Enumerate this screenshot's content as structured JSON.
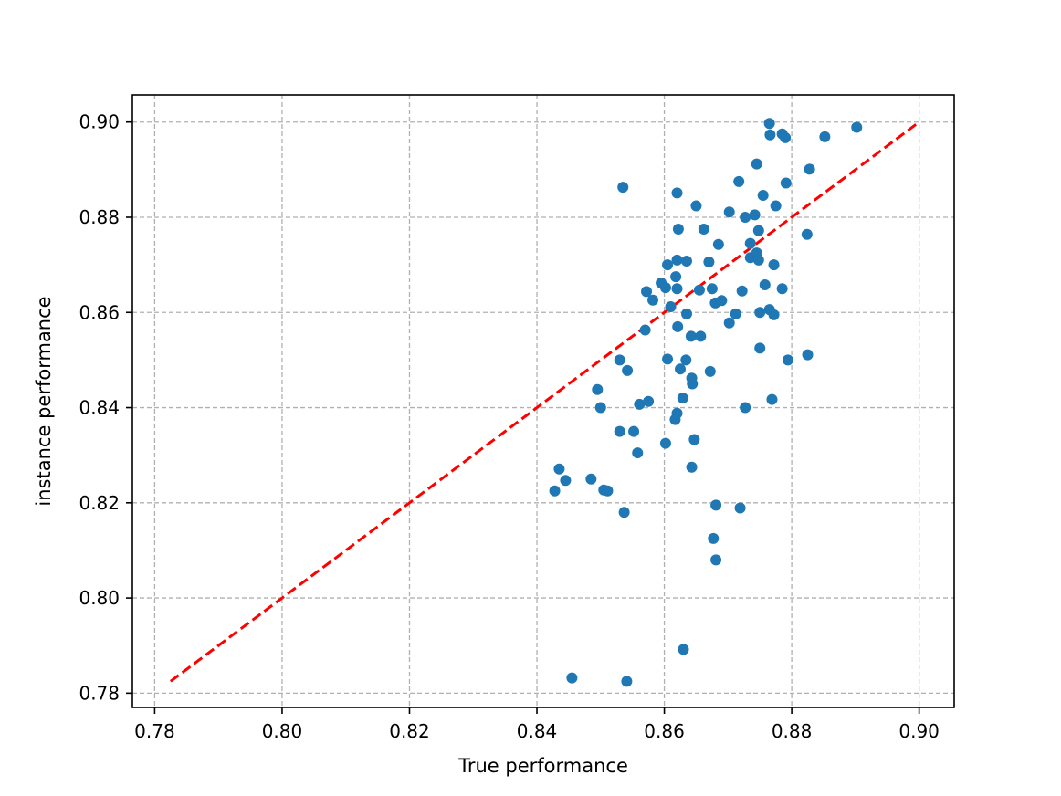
{
  "chart_data": {
    "type": "scatter",
    "xlabel": "True performance",
    "ylabel": "instance performance",
    "xlim": [
      0.7765,
      0.9055
    ],
    "ylim": [
      0.777,
      0.9057
    ],
    "xticks": [
      0.78,
      0.8,
      0.82,
      0.84,
      0.86,
      0.88,
      0.9
    ],
    "yticks": [
      0.78,
      0.8,
      0.82,
      0.84,
      0.86,
      0.88,
      0.9
    ],
    "xtick_labels": [
      "0.78",
      "0.80",
      "0.82",
      "0.84",
      "0.86",
      "0.88",
      "0.90"
    ],
    "ytick_labels": [
      "0.78",
      "0.80",
      "0.82",
      "0.84",
      "0.86",
      "0.88",
      "0.90"
    ],
    "grid": true,
    "point_color": "#1f77b4",
    "reference_line": {
      "x": [
        0.7825,
        0.8995
      ],
      "y": [
        0.7825,
        0.8995
      ],
      "color": "#ff0000",
      "style": "dashed"
    },
    "points": [
      [
        0.8765,
        0.8997
      ],
      [
        0.8766,
        0.8973
      ],
      [
        0.8785,
        0.8975
      ],
      [
        0.879,
        0.8967
      ],
      [
        0.8852,
        0.8969
      ],
      [
        0.8902,
        0.8989
      ],
      [
        0.8745,
        0.8912
      ],
      [
        0.8828,
        0.8901
      ],
      [
        0.8717,
        0.8875
      ],
      [
        0.8791,
        0.8872
      ],
      [
        0.8535,
        0.8863
      ],
      [
        0.862,
        0.8851
      ],
      [
        0.8755,
        0.8846
      ],
      [
        0.865,
        0.8824
      ],
      [
        0.8775,
        0.8824
      ],
      [
        0.8702,
        0.8811
      ],
      [
        0.8727,
        0.88
      ],
      [
        0.8742,
        0.8805
      ],
      [
        0.8622,
        0.8775
      ],
      [
        0.8662,
        0.8775
      ],
      [
        0.8748,
        0.8772
      ],
      [
        0.8824,
        0.8764
      ],
      [
        0.8685,
        0.8743
      ],
      [
        0.8735,
        0.8745
      ],
      [
        0.8745,
        0.8725
      ],
      [
        0.8735,
        0.8715
      ],
      [
        0.8748,
        0.871
      ],
      [
        0.8605,
        0.87
      ],
      [
        0.862,
        0.871
      ],
      [
        0.8635,
        0.8708
      ],
      [
        0.867,
        0.8706
      ],
      [
        0.8772,
        0.87
      ],
      [
        0.8618,
        0.8675
      ],
      [
        0.8595,
        0.8662
      ],
      [
        0.8572,
        0.8644
      ],
      [
        0.8602,
        0.8652
      ],
      [
        0.862,
        0.865
      ],
      [
        0.8655,
        0.8647
      ],
      [
        0.8675,
        0.865
      ],
      [
        0.8722,
        0.8645
      ],
      [
        0.8758,
        0.8658
      ],
      [
        0.8785,
        0.865
      ],
      [
        0.8582,
        0.8626
      ],
      [
        0.861,
        0.8612
      ],
      [
        0.868,
        0.862
      ],
      [
        0.869,
        0.8625
      ],
      [
        0.8635,
        0.8597
      ],
      [
        0.8712,
        0.8597
      ],
      [
        0.875,
        0.86
      ],
      [
        0.8765,
        0.8606
      ],
      [
        0.8772,
        0.8595
      ],
      [
        0.8702,
        0.8578
      ],
      [
        0.8621,
        0.857
      ],
      [
        0.857,
        0.8563
      ],
      [
        0.8642,
        0.855
      ],
      [
        0.8657,
        0.855
      ],
      [
        0.875,
        0.8525
      ],
      [
        0.853,
        0.85
      ],
      [
        0.8605,
        0.8502
      ],
      [
        0.8634,
        0.85
      ],
      [
        0.8794,
        0.85
      ],
      [
        0.8825,
        0.8511
      ],
      [
        0.8542,
        0.8478
      ],
      [
        0.8625,
        0.8481
      ],
      [
        0.8672,
        0.8476
      ],
      [
        0.8643,
        0.8462
      ],
      [
        0.8644,
        0.845
      ],
      [
        0.8495,
        0.8438
      ],
      [
        0.8629,
        0.842
      ],
      [
        0.8769,
        0.8417
      ],
      [
        0.8561,
        0.8407
      ],
      [
        0.8575,
        0.8413
      ],
      [
        0.85,
        0.84
      ],
      [
        0.8727,
        0.84
      ],
      [
        0.862,
        0.8388
      ],
      [
        0.8617,
        0.8375
      ],
      [
        0.853,
        0.835
      ],
      [
        0.8552,
        0.835
      ],
      [
        0.8647,
        0.8333
      ],
      [
        0.8602,
        0.8325
      ],
      [
        0.8558,
        0.8305
      ],
      [
        0.8435,
        0.8271
      ],
      [
        0.8643,
        0.8275
      ],
      [
        0.8445,
        0.8247
      ],
      [
        0.8485,
        0.825
      ],
      [
        0.8428,
        0.8225
      ],
      [
        0.8505,
        0.8227
      ],
      [
        0.8511,
        0.8225
      ],
      [
        0.8681,
        0.8195
      ],
      [
        0.8719,
        0.8189
      ],
      [
        0.8537,
        0.818
      ],
      [
        0.8677,
        0.8125
      ],
      [
        0.8681,
        0.808
      ],
      [
        0.863,
        0.7892
      ],
      [
        0.8455,
        0.7832
      ],
      [
        0.8541,
        0.7825
      ]
    ]
  }
}
